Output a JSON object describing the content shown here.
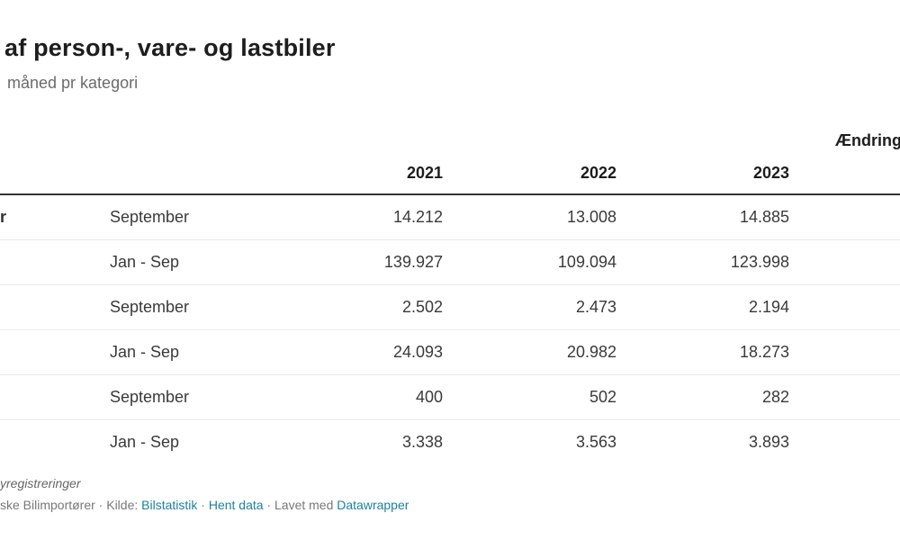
{
  "header": {
    "title": "af person-, vare- og lastbiler",
    "subtitle": "måned pr kategori"
  },
  "table": {
    "column_headers": {
      "year1": "2021",
      "year2": "2022",
      "year3": "2023",
      "change": "Ændring"
    },
    "rows": [
      {
        "label_fragment": "r",
        "period": "September",
        "y2021": "14.212",
        "y2022": "13.008",
        "y2023": "14.885",
        "change": ""
      },
      {
        "label_fragment": "",
        "period": "Jan - Sep",
        "y2021": "139.927",
        "y2022": "109.094",
        "y2023": "123.998",
        "change": ""
      },
      {
        "label_fragment": "",
        "period": "September",
        "y2021": "2.502",
        "y2022": "2.473",
        "y2023": "2.194",
        "change": ""
      },
      {
        "label_fragment": "",
        "period": "Jan - Sep",
        "y2021": "24.093",
        "y2022": "20.982",
        "y2023": "18.273",
        "change": ""
      },
      {
        "label_fragment": "",
        "period": "September",
        "y2021": "400",
        "y2022": "502",
        "y2023": "282",
        "change": ""
      },
      {
        "label_fragment": "",
        "period": "Jan - Sep",
        "y2021": "3.338",
        "y2022": "3.563",
        "y2023": "3.893",
        "change": ""
      }
    ]
  },
  "footer": {
    "note_fragment": "yregistreringer",
    "byline_fragment": "ske Bilimportører · Kilde: ",
    "source_link": "Bilstatistik",
    "separator1": " · ",
    "data_link": "Hent data",
    "separator2": " · Lavet med ",
    "tool_link": "Datawrapper"
  },
  "colors": {
    "title_text": "#1d1d1d",
    "body_text": "#3a3a3a",
    "muted_text": "#6b6b6b",
    "link": "#1d81a2",
    "header_rule": "#333333",
    "row_divider": "#e9e9e9"
  },
  "chart_data": {
    "type": "table",
    "title": "af person-, vare- og lastbiler",
    "subtitle": "måned pr kategori",
    "columns": [
      "",
      "",
      "2021",
      "2022",
      "2023",
      "Ændring"
    ],
    "rows": [
      [
        "r",
        "September",
        "14.212",
        "13.008",
        "14.885",
        ""
      ],
      [
        "",
        "Jan - Sep",
        "139.927",
        "109.094",
        "123.998",
        ""
      ],
      [
        "",
        "September",
        "2.502",
        "2.473",
        "2.194",
        ""
      ],
      [
        "",
        "Jan - Sep",
        "24.093",
        "20.982",
        "18.273",
        ""
      ],
      [
        "",
        "September",
        "400",
        "502",
        "282",
        ""
      ],
      [
        "",
        "Jan - Sep",
        "3.338",
        "3.563",
        "3.893",
        ""
      ]
    ],
    "layout_hints": {
      "numbers_right_aligned": true,
      "grid": "horizontal row dividers only",
      "cropped": "left row-label column and right Ændring column are clipped by viewport"
    }
  }
}
